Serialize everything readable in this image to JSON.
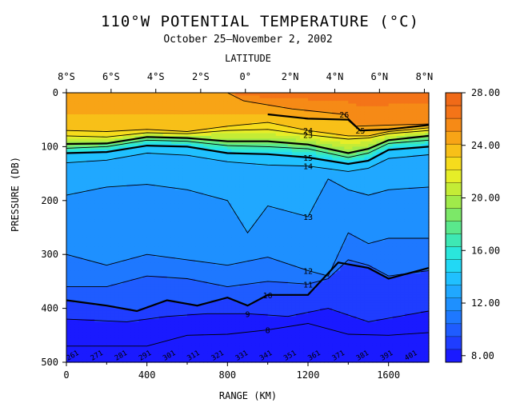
{
  "chart_data": {
    "type": "heatmap",
    "title": "110°W POTENTIAL TEMPERATURE (°C)",
    "subtitle": "October 25–November 2, 2002",
    "top_axis_label": "LATITUDE",
    "xlabel": "RANGE (KM)",
    "ylabel": "PRESSURE (DB)",
    "xlim": [
      0,
      1800
    ],
    "ylim": [
      0,
      500
    ],
    "y_inverted": true,
    "x_ticks": [
      0,
      400,
      800,
      1200,
      1600
    ],
    "x_tick_labels": [
      "0",
      "400",
      "800",
      "1200",
      "1600"
    ],
    "y_ticks": [
      0,
      100,
      200,
      300,
      400,
      500
    ],
    "y_tick_labels": [
      "0",
      "100",
      "200",
      "300",
      "400",
      "500"
    ],
    "lat_ticks": [
      {
        "km": 0,
        "label": "8°S"
      },
      {
        "km": 222,
        "label": "6°S"
      },
      {
        "km": 444,
        "label": "4°S"
      },
      {
        "km": 667,
        "label": "2°S"
      },
      {
        "km": 889,
        "label": "0°"
      },
      {
        "km": 1111,
        "label": "2°N"
      },
      {
        "km": 1333,
        "label": "4°N"
      },
      {
        "km": 1555,
        "label": "6°N"
      },
      {
        "km": 1778,
        "label": "8°N"
      }
    ],
    "colorbar": {
      "min": 7.5,
      "max": 28.0,
      "levels": [
        8,
        9,
        10,
        11,
        12,
        13,
        14,
        15,
        16,
        17,
        18,
        19,
        20,
        21,
        22,
        23,
        24,
        25,
        26,
        27,
        28
      ],
      "tick_labels": [
        "28.00",
        "24.00",
        "20.00",
        "16.00",
        "12.00",
        "8.00"
      ],
      "tick_values": [
        28,
        24,
        20,
        16,
        12,
        8
      ],
      "colors": [
        "#1a1aff",
        "#1f3dff",
        "#1f5cff",
        "#1e78ff",
        "#1e90ff",
        "#20a8ff",
        "#20c0ff",
        "#22d8f5",
        "#2ae6dc",
        "#3ee8b4",
        "#5ae88c",
        "#7ce868",
        "#a0ea4a",
        "#c4ec36",
        "#e6ee28",
        "#f6dc1c",
        "#f8c018",
        "#f8a416",
        "#f68a16",
        "#f47418",
        "#f06a18"
      ]
    },
    "isotherms": [
      {
        "value": 26,
        "label": "26",
        "points": [
          [
            800,
            0
          ],
          [
            880,
            15
          ],
          [
            1120,
            30
          ],
          [
            1380,
            40
          ],
          [
            1440,
            62
          ],
          [
            1600,
            60
          ],
          [
            1800,
            58
          ]
        ]
      },
      {
        "value": 25,
        "label": "25",
        "points": [
          [
            1000,
            40
          ],
          [
            1200,
            48
          ],
          [
            1400,
            50
          ],
          [
            1460,
            70
          ],
          [
            1600,
            68
          ],
          [
            1800,
            60
          ]
        ]
      },
      {
        "value": 24,
        "label": "24",
        "points": [
          [
            0,
            70
          ],
          [
            200,
            72
          ],
          [
            400,
            68
          ],
          [
            600,
            72
          ],
          [
            800,
            62
          ],
          [
            1000,
            55
          ],
          [
            1200,
            70
          ],
          [
            1400,
            80
          ],
          [
            1500,
            80
          ],
          [
            1600,
            72
          ],
          [
            1800,
            65
          ]
        ]
      },
      {
        "value": 23,
        "label": "23",
        "points": [
          [
            0,
            80
          ],
          [
            200,
            82
          ],
          [
            400,
            74
          ],
          [
            600,
            76
          ],
          [
            800,
            70
          ],
          [
            1000,
            68
          ],
          [
            1200,
            78
          ],
          [
            1400,
            86
          ],
          [
            1500,
            84
          ],
          [
            1600,
            76
          ],
          [
            1800,
            70
          ]
        ]
      },
      {
        "value": 20,
        "label": "",
        "points": [
          [
            0,
            95
          ],
          [
            200,
            94
          ],
          [
            400,
            82
          ],
          [
            600,
            84
          ],
          [
            800,
            90
          ],
          [
            1000,
            90
          ],
          [
            1200,
            96
          ],
          [
            1400,
            112
          ],
          [
            1500,
            104
          ],
          [
            1600,
            88
          ],
          [
            1800,
            80
          ]
        ]
      },
      {
        "value": 18,
        "label": "",
        "points": [
          [
            0,
            103
          ],
          [
            200,
            100
          ],
          [
            400,
            88
          ],
          [
            600,
            90
          ],
          [
            800,
            98
          ],
          [
            1000,
            100
          ],
          [
            1200,
            104
          ],
          [
            1400,
            120
          ],
          [
            1500,
            112
          ],
          [
            1600,
            94
          ],
          [
            1800,
            88
          ]
        ]
      },
      {
        "value": 15,
        "label": "15",
        "points": [
          [
            0,
            112
          ],
          [
            200,
            110
          ],
          [
            400,
            98
          ],
          [
            600,
            100
          ],
          [
            800,
            112
          ],
          [
            1000,
            114
          ],
          [
            1200,
            120
          ],
          [
            1400,
            132
          ],
          [
            1500,
            126
          ],
          [
            1600,
            106
          ],
          [
            1800,
            100
          ]
        ]
      },
      {
        "value": 14,
        "label": "14",
        "points": [
          [
            0,
            130
          ],
          [
            200,
            125
          ],
          [
            400,
            112
          ],
          [
            600,
            116
          ],
          [
            800,
            128
          ],
          [
            1000,
            134
          ],
          [
            1200,
            136
          ],
          [
            1400,
            146
          ],
          [
            1500,
            140
          ],
          [
            1600,
            122
          ],
          [
            1800,
            115
          ]
        ]
      },
      {
        "value": 13,
        "label": "13",
        "points": [
          [
            0,
            190
          ],
          [
            200,
            175
          ],
          [
            400,
            170
          ],
          [
            600,
            180
          ],
          [
            800,
            200
          ],
          [
            900,
            260
          ],
          [
            1000,
            210
          ],
          [
            1200,
            230
          ],
          [
            1300,
            160
          ],
          [
            1400,
            180
          ],
          [
            1500,
            190
          ],
          [
            1600,
            180
          ],
          [
            1800,
            175
          ]
        ]
      },
      {
        "value": 12,
        "label": "12",
        "points": [
          [
            0,
            300
          ],
          [
            200,
            320
          ],
          [
            400,
            300
          ],
          [
            600,
            310
          ],
          [
            800,
            320
          ],
          [
            1000,
            305
          ],
          [
            1200,
            330
          ],
          [
            1300,
            340
          ],
          [
            1400,
            260
          ],
          [
            1500,
            280
          ],
          [
            1600,
            270
          ],
          [
            1800,
            270
          ]
        ]
      },
      {
        "value": 11,
        "label": "11",
        "points": [
          [
            0,
            360
          ],
          [
            200,
            360
          ],
          [
            400,
            340
          ],
          [
            600,
            345
          ],
          [
            800,
            360
          ],
          [
            1000,
            350
          ],
          [
            1200,
            355
          ],
          [
            1300,
            345
          ],
          [
            1400,
            310
          ],
          [
            1500,
            320
          ],
          [
            1600,
            340
          ],
          [
            1800,
            330
          ]
        ]
      },
      {
        "value": 10,
        "label": "10",
        "points": [
          [
            0,
            385
          ],
          [
            200,
            395
          ],
          [
            350,
            405
          ],
          [
            500,
            385
          ],
          [
            650,
            395
          ],
          [
            800,
            380
          ],
          [
            900,
            395
          ],
          [
            1000,
            375
          ],
          [
            1200,
            375
          ],
          [
            1350,
            315
          ],
          [
            1500,
            325
          ],
          [
            1600,
            345
          ],
          [
            1800,
            325
          ]
        ]
      },
      {
        "value": 9,
        "label": "9",
        "points": [
          [
            0,
            420
          ],
          [
            300,
            425
          ],
          [
            500,
            415
          ],
          [
            700,
            410
          ],
          [
            900,
            410
          ],
          [
            1100,
            415
          ],
          [
            1300,
            400
          ],
          [
            1500,
            425
          ],
          [
            1800,
            405
          ]
        ]
      },
      {
        "value": 8.5,
        "label": "8",
        "points": [
          [
            0,
            470
          ],
          [
            400,
            470
          ],
          [
            600,
            450
          ],
          [
            800,
            448
          ],
          [
            1000,
            440
          ],
          [
            1200,
            428
          ],
          [
            1400,
            448
          ],
          [
            1600,
            450
          ],
          [
            1800,
            445
          ]
        ]
      }
    ],
    "sigma_theta_labels": [
      "261",
      "271",
      "281",
      "291",
      "301",
      "311",
      "321",
      "331",
      "341",
      "351",
      "361",
      "371",
      "381",
      "391",
      "401"
    ]
  }
}
